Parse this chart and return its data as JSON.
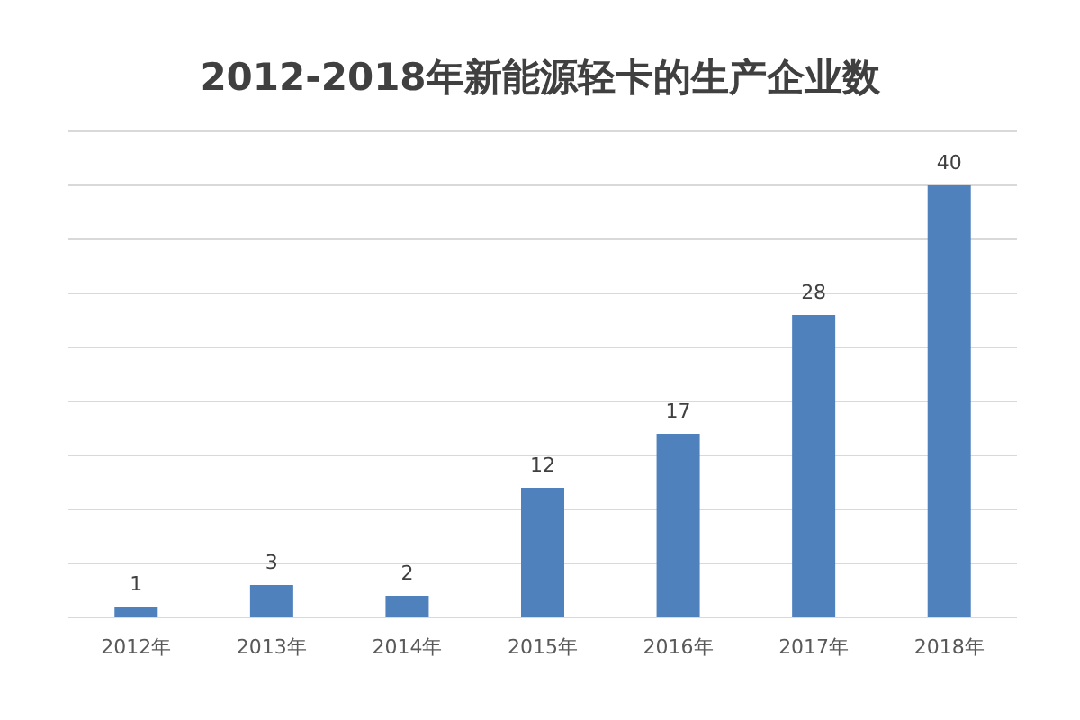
{
  "chart_data": {
    "type": "bar",
    "title": "2012-2018年新能源轻卡的生产企业数",
    "categories": [
      "2012年",
      "2013年",
      "2014年",
      "2015年",
      "2016年",
      "2017年",
      "2018年"
    ],
    "series": [
      {
        "color": "#4f81bd",
        "values": [
          1,
          3,
          2,
          12,
          17,
          28,
          40
        ]
      }
    ],
    "ylim": [
      0,
      45
    ],
    "yticks": [
      {
        "value": 0,
        "label": null
      },
      {
        "value": 5,
        "label": null
      },
      {
        "value": 10,
        "label": null
      },
      {
        "value": 15,
        "label": null
      },
      {
        "value": 20,
        "label": null
      },
      {
        "value": 25,
        "label": null
      },
      {
        "value": 30,
        "label": null
      },
      {
        "value": 35,
        "label": null
      },
      {
        "value": 40,
        "label": null
      },
      {
        "value": 45,
        "label": null
      }
    ],
    "grid": "y",
    "data_labels": true,
    "tick_labels": "x"
  }
}
